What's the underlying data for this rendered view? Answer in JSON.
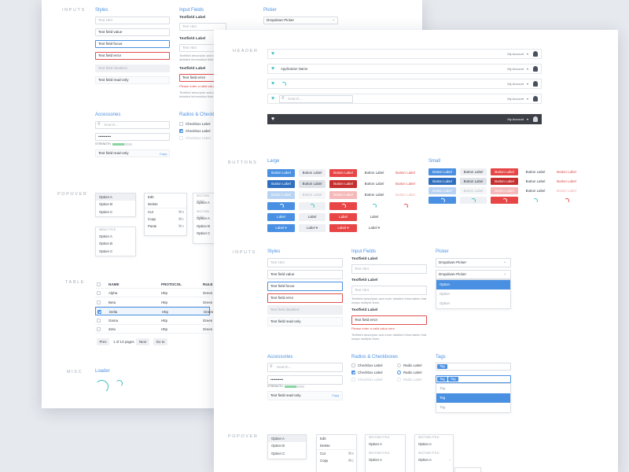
{
  "sheet_a": {
    "sections": {
      "inputs": "INPUTS",
      "popover": "POPOVER",
      "table": "TABLE",
      "misc": "MISC"
    },
    "inputs": {
      "styles_title": "Styles",
      "fields": [
        "Text Hint",
        "Text field value",
        "Text field focus",
        "Text field error",
        "Text field disabled",
        "Text field read-only"
      ],
      "input_fields_title": "Input Fields",
      "tf_label": "Textfield Label",
      "hint": "Text Hint",
      "description": "Textfield descriptor and more detailed information that wraps multiple lines.",
      "error_value": "Text field error",
      "error_message": "Please enter a valid value here",
      "picker_title": "Picker",
      "picker_value": "Dropdown Picker",
      "accessories_title": "Accessories",
      "search_placeholder": "Search...",
      "password": "••••••••••",
      "strength": "STRENGTH",
      "strength_level": 0.6,
      "readonly": "Text field read-only",
      "copy": "Copy",
      "radios_title": "Radios & Checkboxes",
      "checkboxes": [
        "Checkbox Label",
        "Checkbox Label",
        "Checkbox Label"
      ]
    },
    "popover": {
      "menu1": [
        "Option A",
        "Option B",
        "Option C"
      ],
      "menu_title": "MENU TITLE",
      "menu2": [
        "Option A",
        "Option B",
        "Option C"
      ],
      "menu3": [
        "Edit",
        "Delete"
      ],
      "menu3b": [
        {
          "label": "Cut",
          "key": "⌘X"
        },
        {
          "label": "Copy",
          "key": "⌘C"
        },
        {
          "label": "Paste",
          "key": "⌘V"
        }
      ],
      "section_title": "SECTION TITLE",
      "menu4a": [
        "Option A"
      ],
      "menu4b": [
        "Option A",
        "Option B",
        "Option C"
      ]
    },
    "table": {
      "columns": [
        "NAME",
        "PROTOCOL",
        "RULE"
      ],
      "rows": [
        {
          "name": "Alpha",
          "protocol": "Http",
          "rule": "Green"
        },
        {
          "name": "Beta",
          "protocol": "Http",
          "rule": "Green"
        },
        {
          "name": "Delta",
          "protocol": "Http",
          "rule": "Green"
        },
        {
          "name": "Gama",
          "protocol": "Http",
          "rule": "Green"
        },
        {
          "name": "Zeta",
          "protocol": "Http",
          "rule": "Green"
        }
      ],
      "selected_row": 2,
      "prev": "Prev",
      "pages": "1 of 13 pages",
      "next": "Next",
      "goto": "Go to"
    },
    "misc": {
      "loader_title": "Loader"
    }
  },
  "sheet_b": {
    "sections": {
      "header": "HEADER",
      "buttons": "BUTTONS",
      "inputs": "INPUTS",
      "popover": "POPOVER"
    },
    "header": {
      "account": "My Account",
      "app_name": "Application Name",
      "search_placeholder": "Search..."
    },
    "buttons": {
      "large_title": "Large",
      "small_title": "Small",
      "label": "Button Label",
      "short_label": "Label"
    },
    "inputs": {
      "styles_title": "Styles",
      "fields": [
        "Text Hint",
        "Text field value",
        "Text field focus",
        "Text field error",
        "Text field disabled",
        "Text field read-only"
      ],
      "input_fields_title": "Input Fields",
      "tf_label": "Textfield Label",
      "hint": "Text Hint",
      "description": "Textfield descriptor and more detailed information that wraps multiple lines.",
      "error_value": "Text field error",
      "error_message": "Please enter a valid value here",
      "picker_title": "Picker",
      "picker_value": "Dropdown Picker",
      "picker_options": [
        "Option",
        "Option",
        "Option"
      ],
      "accessories_title": "Accessories",
      "search_placeholder": "Search...",
      "password": "••••••••••",
      "strength": "STRENGTH",
      "strength_level": 0.6,
      "readonly": "Text field read-only",
      "copy": "Copy",
      "radios_title": "Radios & Checkboxes",
      "checkboxes": [
        "Checkbox Label",
        "Checkbox Label",
        "Checkbox Label"
      ],
      "radios": [
        "Radio Label",
        "Radio Label",
        "Radio Label"
      ],
      "tags_title": "Tags",
      "tag": "Tag",
      "tag_options": [
        "Tag",
        "Tag",
        "Tag"
      ]
    },
    "popover": {
      "menu1": [
        "Option A",
        "Option B",
        "Option C"
      ],
      "menu2": [
        "Edit",
        "Delete"
      ],
      "menu2b": [
        {
          "label": "Cut",
          "key": "⌘X"
        },
        {
          "label": "Copy",
          "key": "⌘C"
        }
      ],
      "section_title": "SECTION TITLE",
      "menu3a": [
        "Option A"
      ],
      "menu3b": [
        "Option A"
      ],
      "menu4a": [
        "Option A"
      ],
      "menu4b": [
        "Option A"
      ]
    }
  },
  "colors": {
    "accent": "#4a90e2",
    "danger": "#e84646",
    "teal": "#41bfbf",
    "header_dark": "#3c3f45",
    "success": "#89d5a2"
  }
}
